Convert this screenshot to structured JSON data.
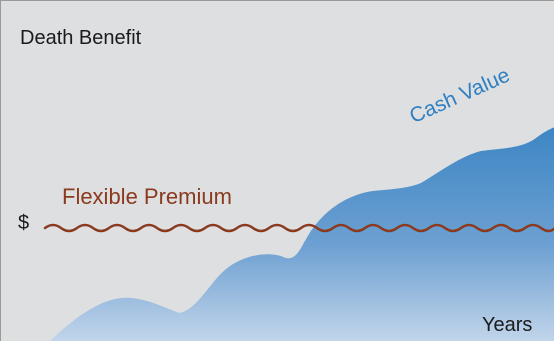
{
  "labels": {
    "death_benefit": "Death Benefit",
    "cash_value": "Cash Value",
    "flexible_premium": "Flexible Premium",
    "currency": "$",
    "years": "Years"
  },
  "colors": {
    "background": "#dedfe1",
    "area_top": "#3d86c4",
    "area_bottom": "#c2d5ea",
    "premium_line": "#8b3a1e",
    "cash_value_text": "#2f7fc1",
    "text": "#1b1b1b"
  }
}
